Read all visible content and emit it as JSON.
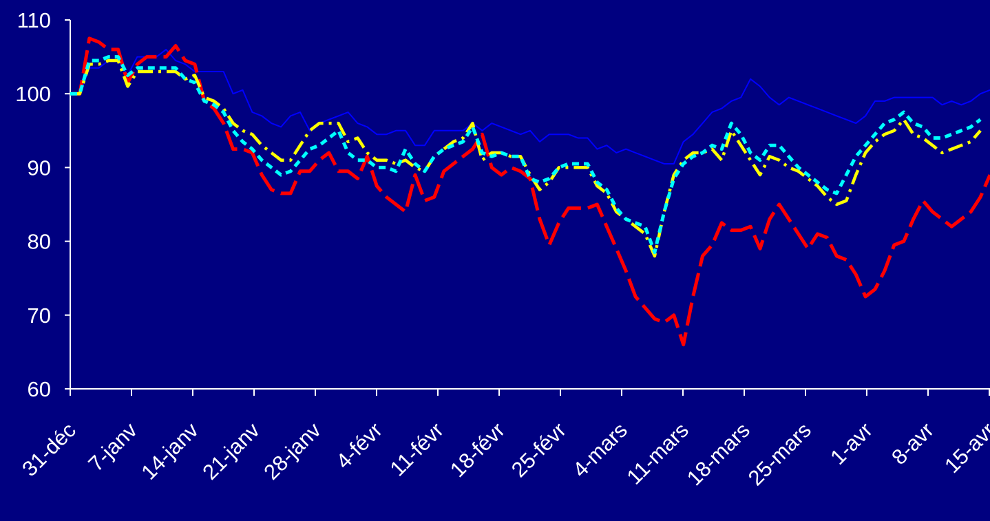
{
  "chart_data": {
    "type": "line",
    "title": "",
    "xlabel": "",
    "ylabel": "",
    "ylim": [
      60,
      110
    ],
    "yticks": [
      60,
      70,
      80,
      90,
      100,
      110
    ],
    "x_tick_labels": [
      "31-déc",
      "7-janv",
      "14-janv",
      "21-janv",
      "28-janv",
      "4-févr",
      "11-févr",
      "18-févr",
      "25-févr",
      "4-mars",
      "11-mars",
      "18-mars",
      "25-mars",
      "1-avr",
      "8-avr",
      "15-avr"
    ],
    "grid": false,
    "legend": "none",
    "series": [
      {
        "color": "#0000ff",
        "style": "solid",
        "values": [
          100,
          100,
          103.5,
          103.5,
          104.5,
          104.5,
          102.5,
          105,
          105,
          105,
          106,
          104.5,
          104,
          103,
          103,
          103,
          103,
          100,
          100.5,
          97.5,
          97,
          96,
          95.5,
          97,
          97.5,
          95,
          96,
          96.5,
          97,
          97.5,
          96,
          95.5,
          94.5,
          94.5,
          95,
          95,
          93,
          93,
          95,
          95,
          95,
          95,
          96,
          95,
          96,
          95.5,
          95,
          94.5,
          95,
          93.5,
          94.5,
          94.5,
          94.5,
          94,
          94,
          92.5,
          93,
          92,
          92.5,
          92,
          91.5,
          91,
          90.5,
          90.5,
          93.5,
          94.5,
          96,
          97.5,
          98,
          99,
          99.5,
          102,
          101,
          99.5,
          98.5,
          99.5,
          99,
          98.5,
          98,
          97.5,
          97,
          96.5,
          96,
          97,
          99,
          99,
          99.5,
          99.5,
          99.5,
          99.5,
          99.5,
          98.5,
          99,
          98.5,
          99,
          100,
          100.5
        ]
      },
      {
        "color": "#ff0000",
        "style": "long-dash",
        "values": [
          100,
          100,
          107.5,
          107,
          106,
          106,
          101.5,
          104,
          105,
          105,
          105,
          106.5,
          104.5,
          104,
          99,
          98,
          96,
          92.5,
          92.5,
          92,
          89,
          87,
          86.5,
          86.5,
          89.5,
          89.5,
          91,
          92,
          89.5,
          89.5,
          88.5,
          91.5,
          87.5,
          86,
          85,
          84,
          89,
          85.5,
          86,
          89.5,
          90.5,
          91.5,
          92.5,
          94.5,
          90,
          89,
          90,
          89.5,
          88.5,
          83,
          79.5,
          82.5,
          84.5,
          84.5,
          84.5,
          85,
          82,
          79,
          76,
          72.5,
          71,
          69.5,
          69,
          70,
          66,
          72.5,
          78,
          79.5,
          82.5,
          81.5,
          81.5,
          82,
          79,
          83,
          85,
          83,
          81,
          79,
          81,
          80.5,
          78,
          77.5,
          75.5,
          72.5,
          73.5,
          76,
          79.5,
          80,
          83,
          85.5,
          84,
          83,
          82,
          83,
          84,
          86,
          89
        ]
      },
      {
        "color": "#ffff00",
        "style": "dash-dot",
        "values": [
          100,
          100,
          104,
          104,
          104.5,
          104.5,
          101,
          103,
          103,
          103,
          103,
          103,
          102,
          102.5,
          99.5,
          99,
          98,
          96,
          95,
          94.5,
          93,
          92,
          91,
          91,
          93,
          95,
          96,
          96,
          96,
          93.5,
          94,
          92,
          91,
          91,
          90.5,
          91,
          90,
          89.5,
          91.5,
          92.5,
          93.5,
          94,
          96,
          91,
          92,
          92,
          91.5,
          91.5,
          89,
          87,
          88,
          90,
          90,
          90,
          90,
          87.5,
          86.5,
          84,
          83,
          82,
          81,
          78,
          84,
          89,
          91,
          92,
          92,
          92.5,
          91,
          95,
          93,
          91,
          89,
          91.5,
          91,
          90,
          89.5,
          88.5,
          87.5,
          86,
          85,
          85.5,
          89,
          92,
          93.5,
          94.5,
          95,
          96.5,
          94.5,
          94,
          93,
          92,
          92.5,
          93,
          93.5,
          95
        ]
      },
      {
        "color": "#00ffff",
        "style": "dotted",
        "values": [
          100,
          100,
          104.5,
          104.5,
          105,
          105,
          102.5,
          103.5,
          103.5,
          103.5,
          103.5,
          103.5,
          102,
          101.5,
          99,
          98.5,
          97.5,
          95,
          93.5,
          92.5,
          91,
          90,
          89,
          89.5,
          91,
          92.5,
          93,
          94,
          95,
          92,
          91,
          91,
          90,
          90,
          89.5,
          92.5,
          90.5,
          89.5,
          91.5,
          92.5,
          93,
          93.5,
          95.5,
          92,
          91.5,
          92,
          91.5,
          91.5,
          88.5,
          88,
          88.5,
          90,
          90.5,
          90.5,
          90.5,
          88,
          87,
          84.5,
          83,
          82.5,
          82,
          78.5,
          84,
          88.5,
          90.5,
          91.5,
          92,
          93,
          92.5,
          96,
          94.5,
          92,
          91,
          93,
          93,
          91.5,
          90,
          89,
          88,
          87,
          86.5,
          89,
          91.5,
          93,
          94.5,
          96,
          96.5,
          97.5,
          96,
          95.5,
          94,
          94,
          94.5,
          95,
          95.5,
          96.5
        ]
      }
    ]
  }
}
